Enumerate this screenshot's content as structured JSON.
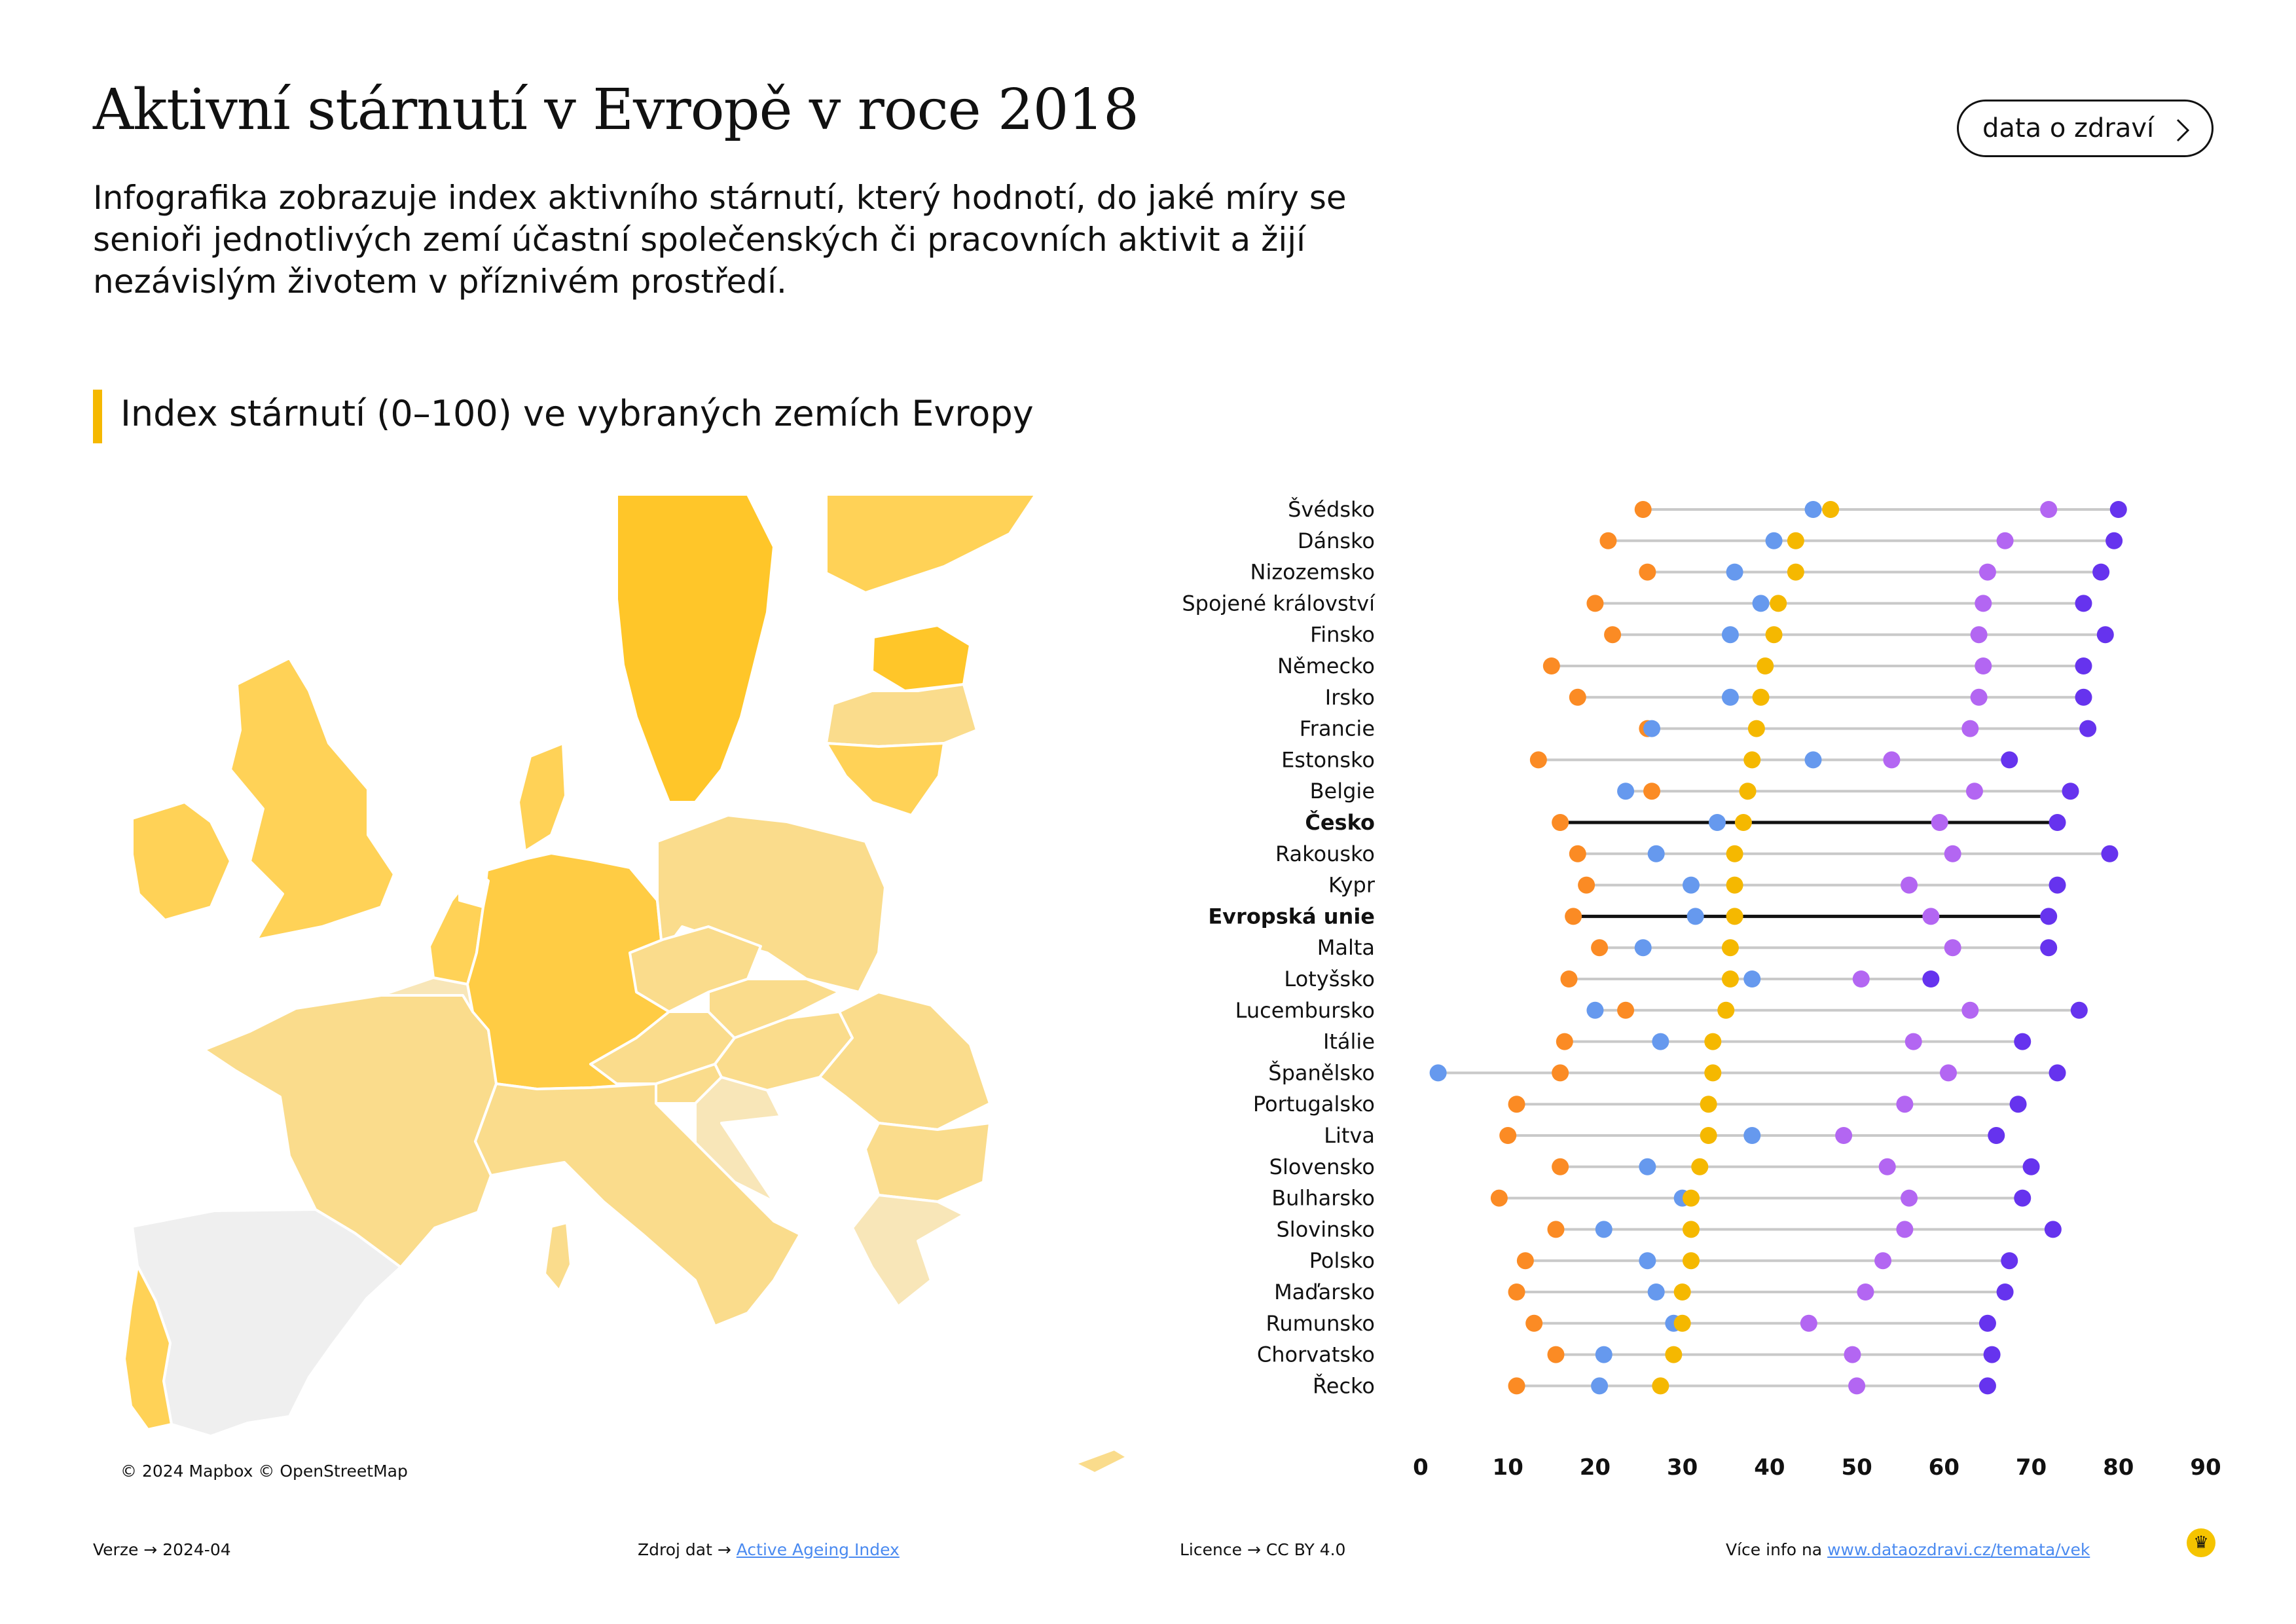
{
  "header": {
    "title": "Aktivní stárnutí v Evropě v roce 2018",
    "description": "Infografika zobrazuje index aktivního stárnutí, který hodnotí, do jaké míry se senioři jednotlivých zemí účastní společenských či pracovních aktivit a žijí nezávislým životem v příznivém prostředí.",
    "button_label": "data o zdraví",
    "button_icon": "chevron-right-icon"
  },
  "section": {
    "title": "Index stárnutí (0–100) ve vybraných zemích Evropy",
    "accent_color": "#f5b800"
  },
  "map": {
    "attribution": "© 2024 Mapbox © OpenStreetMap",
    "colors": {
      "dark": "#ffc629",
      "mid": "#ffd257",
      "light": "#fadc8c",
      "pale": "#f8e6b8",
      "nodata": "#efefef"
    }
  },
  "chart_data": {
    "type": "dot-range",
    "x_ticks": [
      0,
      10,
      20,
      30,
      40,
      50,
      60,
      70,
      80,
      90
    ],
    "xlim": [
      0,
      90
    ],
    "series_colors": [
      "#fb8b24",
      "#6699ee",
      "#f5b800",
      "#b366f2",
      "#6633ee"
    ],
    "highlight_color": "#111111",
    "range_color": "#c9c9c9",
    "rows": [
      {
        "label": "Švédsko",
        "bold": false,
        "values": [
          25.5,
          45,
          47,
          72,
          80
        ]
      },
      {
        "label": "Dánsko",
        "bold": false,
        "values": [
          21.5,
          40.5,
          43,
          67,
          79.5
        ]
      },
      {
        "label": "Nizozemsko",
        "bold": false,
        "values": [
          26,
          36,
          43,
          65,
          78
        ]
      },
      {
        "label": "Spojené království",
        "bold": false,
        "values": [
          20,
          39,
          41,
          64.5,
          76
        ]
      },
      {
        "label": "Finsko",
        "bold": false,
        "values": [
          22,
          35.5,
          40.5,
          64,
          78.5
        ]
      },
      {
        "label": "Německo",
        "bold": false,
        "values": [
          15,
          null,
          39.5,
          64.5,
          76
        ]
      },
      {
        "label": "Irsko",
        "bold": false,
        "values": [
          18,
          35.5,
          39,
          64,
          76
        ]
      },
      {
        "label": "Francie",
        "bold": false,
        "values": [
          26,
          26.5,
          38.5,
          63,
          76.5
        ]
      },
      {
        "label": "Estonsko",
        "bold": false,
        "values": [
          13.5,
          45,
          38,
          54,
          67.5
        ]
      },
      {
        "label": "Belgie",
        "bold": false,
        "values": [
          26.5,
          23.5,
          37.5,
          63.5,
          74.5
        ]
      },
      {
        "label": "Česko",
        "bold": true,
        "values": [
          16,
          34,
          37,
          59.5,
          73
        ]
      },
      {
        "label": "Rakousko",
        "bold": false,
        "values": [
          18,
          27,
          36,
          61,
          79
        ]
      },
      {
        "label": "Kypr",
        "bold": false,
        "values": [
          19,
          31,
          36,
          56,
          73
        ]
      },
      {
        "label": "Evropská unie",
        "bold": true,
        "values": [
          17.5,
          31.5,
          36,
          58.5,
          72
        ]
      },
      {
        "label": "Malta",
        "bold": false,
        "values": [
          20.5,
          25.5,
          35.5,
          61,
          72
        ]
      },
      {
        "label": "Lotyšsko",
        "bold": false,
        "values": [
          17,
          38,
          35.5,
          50.5,
          58.5
        ]
      },
      {
        "label": "Lucembursko",
        "bold": false,
        "values": [
          23.5,
          20,
          35,
          63,
          75.5
        ]
      },
      {
        "label": "Itálie",
        "bold": false,
        "values": [
          16.5,
          27.5,
          33.5,
          56.5,
          69
        ]
      },
      {
        "label": "Španělsko",
        "bold": false,
        "values": [
          16,
          2,
          33.5,
          60.5,
          73
        ]
      },
      {
        "label": "Portugalsko",
        "bold": false,
        "values": [
          11,
          null,
          33,
          55.5,
          68.5
        ]
      },
      {
        "label": "Litva",
        "bold": false,
        "values": [
          10,
          38,
          33,
          48.5,
          66
        ]
      },
      {
        "label": "Slovensko",
        "bold": false,
        "values": [
          16,
          26,
          32,
          53.5,
          70
        ]
      },
      {
        "label": "Bulharsko",
        "bold": false,
        "values": [
          9,
          30,
          31,
          56,
          69
        ]
      },
      {
        "label": "Slovinsko",
        "bold": false,
        "values": [
          15.5,
          21,
          31,
          55.5,
          72.5
        ]
      },
      {
        "label": "Polsko",
        "bold": false,
        "values": [
          12,
          26,
          31,
          53,
          67.5
        ]
      },
      {
        "label": "Maďarsko",
        "bold": false,
        "values": [
          11,
          27,
          30,
          51,
          67
        ]
      },
      {
        "label": "Rumunsko",
        "bold": false,
        "values": [
          13,
          29,
          30,
          44.5,
          65
        ]
      },
      {
        "label": "Chorvatsko",
        "bold": false,
        "values": [
          15.5,
          21,
          29,
          49.5,
          65.5
        ]
      },
      {
        "label": "Řecko",
        "bold": false,
        "values": [
          11,
          20.5,
          27.5,
          50,
          65
        ]
      }
    ]
  },
  "footer": {
    "version_label": "Verze",
    "version": "2024-04",
    "source_label": "Zdroj dat",
    "source_link": "Active Ageing Index",
    "license_label": "Licence",
    "license": "CC BY 4.0",
    "more_label": "Více info na",
    "more_link": "www.dataozdravi.cz/temata/vek",
    "arrow": "→"
  }
}
